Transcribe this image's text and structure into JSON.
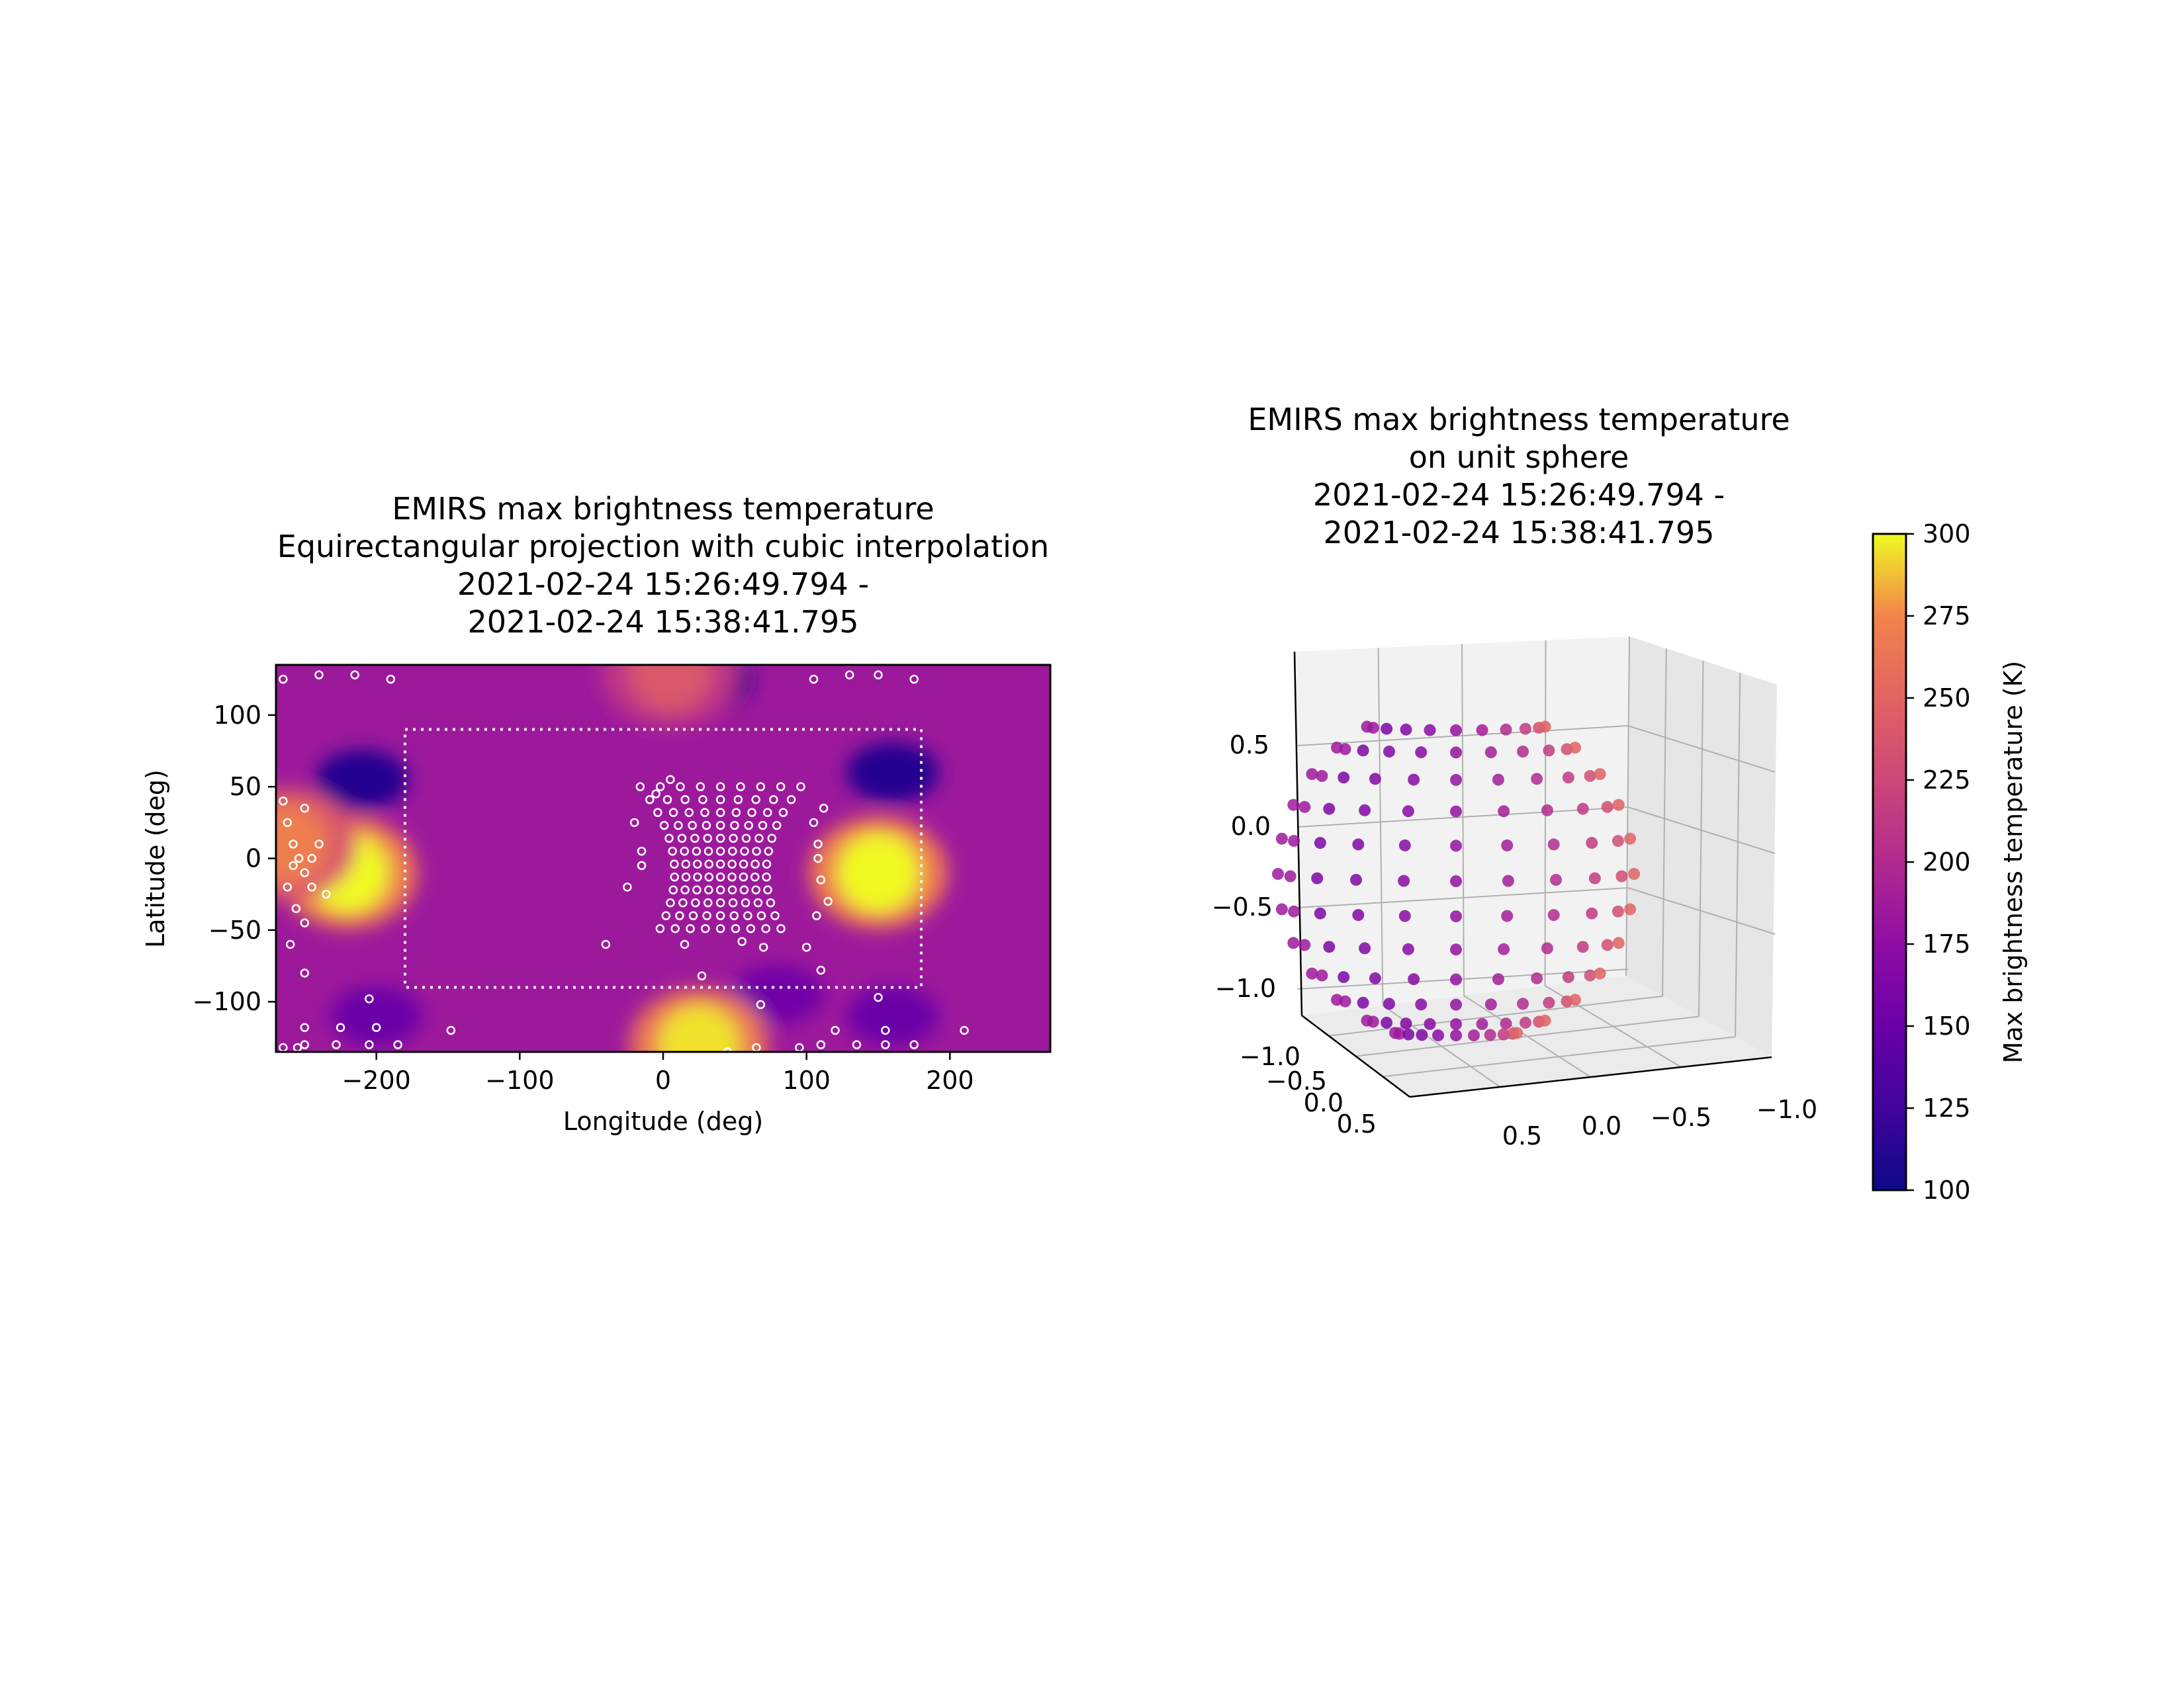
{
  "chart_data": [
    {
      "type": "heatmap",
      "title_lines": [
        "EMIRS max brightness temperature",
        "Equirectangular projection with cubic interpolation",
        "2021-02-24 15:26:49.794 -",
        "2021-02-24 15:38:41.795"
      ],
      "xlabel": "Longitude (deg)",
      "ylabel": "Latitude (deg)",
      "xlim": [
        -270,
        270
      ],
      "ylim": [
        -135,
        135
      ],
      "xticks": [
        -200,
        -100,
        0,
        100,
        200
      ],
      "xtick_labels": [
        "−200",
        "−100",
        "0",
        "100",
        "200"
      ],
      "yticks": [
        100,
        50,
        0,
        -50,
        -100
      ],
      "ytick_labels": [
        "100",
        "50",
        "0",
        "−50",
        "−100"
      ],
      "colormap": "plasma",
      "color_range": [
        100,
        300
      ],
      "dotted_box": {
        "lon": [
          -180,
          180
        ],
        "lat": [
          -90,
          90
        ],
        "color": "#ffffff"
      },
      "field_base_value": 185,
      "hot_spots": [
        {
          "lon": -220,
          "lat": -10,
          "value": 300
        },
        {
          "lon": 150,
          "lat": -10,
          "value": 300
        },
        {
          "lon": 25,
          "lat": -130,
          "value": 295
        },
        {
          "lon": 5,
          "lat": 130,
          "value": 240
        },
        {
          "lon": -262,
          "lat": 10,
          "value": 270
        }
      ],
      "cold_spots": [
        {
          "lon": -210,
          "lat": 55,
          "value": 110
        },
        {
          "lon": 160,
          "lat": 60,
          "value": 110
        },
        {
          "lon": 30,
          "lat": 125,
          "value": 105
        },
        {
          "lon": -200,
          "lat": -110,
          "value": 150
        },
        {
          "lon": 160,
          "lat": -110,
          "value": 150
        },
        {
          "lon": 80,
          "lat": -95,
          "value": 155
        }
      ],
      "sample_points": [
        [
          -265,
          125
        ],
        [
          -240,
          128
        ],
        [
          -215,
          128
        ],
        [
          -190,
          125
        ],
        [
          105,
          125
        ],
        [
          130,
          128
        ],
        [
          150,
          128
        ],
        [
          175,
          125
        ],
        [
          -265,
          40
        ],
        [
          -262,
          25
        ],
        [
          -258,
          10
        ],
        [
          -254,
          0
        ],
        [
          -258,
          -5
        ],
        [
          -262,
          -20
        ],
        [
          -256,
          -35
        ],
        [
          -250,
          -10
        ],
        [
          -245,
          0
        ],
        [
          -240,
          10
        ],
        [
          -235,
          -25
        ],
        [
          -245,
          -20
        ],
        [
          -250,
          -45
        ],
        [
          -260,
          -60
        ],
        [
          -250,
          -80
        ],
        [
          -250,
          35
        ],
        [
          -205,
          -98
        ],
        [
          -250,
          -118
        ],
        [
          -225,
          -118
        ],
        [
          -200,
          -118
        ],
        [
          -250,
          -130
        ],
        [
          -228,
          -130
        ],
        [
          -205,
          -130
        ],
        [
          -185,
          -130
        ],
        [
          -265,
          -132
        ],
        [
          -148,
          -120
        ],
        [
          -40,
          -60
        ],
        [
          -25,
          -20
        ],
        [
          -20,
          25
        ],
        [
          -5,
          45
        ],
        [
          5,
          55
        ],
        [
          -15,
          -5
        ],
        [
          -15,
          5
        ],
        [
          15,
          -60
        ],
        [
          55,
          -58
        ],
        [
          70,
          -62
        ],
        [
          100,
          -62
        ],
        [
          110,
          -78
        ],
        [
          27,
          -82
        ],
        [
          68,
          -102
        ],
        [
          150,
          -97
        ],
        [
          65,
          -132
        ],
        [
          95,
          -132
        ],
        [
          110,
          -130
        ],
        [
          120,
          -120
        ],
        [
          135,
          -130
        ],
        [
          155,
          -130
        ],
        [
          155,
          -120
        ],
        [
          175,
          -130
        ],
        [
          210,
          -120
        ],
        [
          -255,
          -132
        ],
        [
          45,
          -135
        ],
        [
          108,
          0
        ],
        [
          108,
          10
        ],
        [
          110,
          -15
        ],
        [
          115,
          -30
        ],
        [
          107,
          -40
        ],
        [
          105,
          25
        ],
        [
          112,
          35
        ]
      ],
      "grid_cols": 9,
      "grid_rows": 12,
      "grid_lon_center": 40,
      "grid_lon_spacing": 8,
      "grid_lat_top": 50,
      "grid_lat_spacing": 9
    },
    {
      "type": "scatter",
      "title_lines": [
        "EMIRS max brightness temperature",
        "on unit sphere",
        "2021-02-24 15:26:49.794 -",
        "2021-02-24 15:38:41.795"
      ],
      "z_ticks": [
        0.5,
        0.0,
        -0.5,
        -1.0
      ],
      "z_tick_labels": [
        "0.5",
        "0.0",
        "−0.5",
        "−1.0"
      ],
      "x_tick_labels": [
        "−1.0",
        "−0.5",
        "0.0",
        "0.5"
      ],
      "y_tick_labels": [
        "0.5",
        "0.0",
        "−0.5",
        "−1.0"
      ],
      "colormap": "plasma",
      "color_range": [
        100,
        300
      ],
      "points_temperature_gradient": "cool (~150 K) toward center, warm (~260 K) toward right edge",
      "colorbar": {
        "label": "Max brightness temperature (K)",
        "range": [
          100,
          300
        ],
        "ticks": [
          300,
          275,
          250,
          225,
          200,
          175,
          150,
          125,
          100
        ],
        "tick_labels": [
          "300",
          "275",
          "250",
          "225",
          "200",
          "175",
          "150",
          "125",
          "100"
        ]
      }
    }
  ]
}
